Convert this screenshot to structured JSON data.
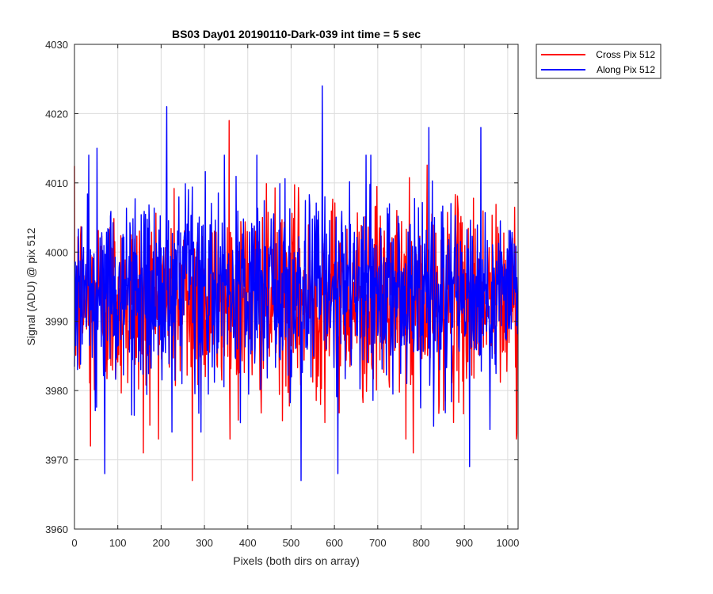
{
  "chart_data": {
    "type": "line",
    "title": "BS03 Day01 20190110-Dark-039 int time = 5 sec",
    "xlabel": "Pixels (both dirs on array)",
    "ylabel": "Signal (ADU) @ pix 512",
    "xlim": [
      0,
      1024
    ],
    "ylim": [
      3960,
      4030
    ],
    "xticks": [
      0,
      100,
      200,
      300,
      400,
      500,
      600,
      700,
      800,
      900,
      1000
    ],
    "yticks": [
      3960,
      3970,
      3980,
      3990,
      4000,
      4010,
      4020,
      4030
    ],
    "grid": true,
    "legend_position": "outside-top-right",
    "series": [
      {
        "name": "Cross Pix 512",
        "color": "#ff0000",
        "mean": 3993,
        "noise_std": 7,
        "points_per_pixel": 1,
        "notable_points": [
          {
            "x": 37,
            "y": 3972
          },
          {
            "x": 159,
            "y": 3971
          },
          {
            "x": 357,
            "y": 4019
          },
          {
            "x": 272,
            "y": 3967
          },
          {
            "x": 782,
            "y": 3971
          },
          {
            "x": 1020,
            "y": 3973
          }
        ]
      },
      {
        "name": "Along Pix 512",
        "color": "#0000ff",
        "mean": 3994,
        "noise_std": 7,
        "points_per_pixel": 1,
        "notable_points": [
          {
            "x": 52,
            "y": 4015
          },
          {
            "x": 70,
            "y": 3968
          },
          {
            "x": 213,
            "y": 4021
          },
          {
            "x": 523,
            "y": 3967
          },
          {
            "x": 572,
            "y": 4024
          },
          {
            "x": 608,
            "y": 3968
          },
          {
            "x": 818,
            "y": 4018
          },
          {
            "x": 938,
            "y": 4018
          },
          {
            "x": 912,
            "y": 3969
          }
        ]
      }
    ]
  }
}
